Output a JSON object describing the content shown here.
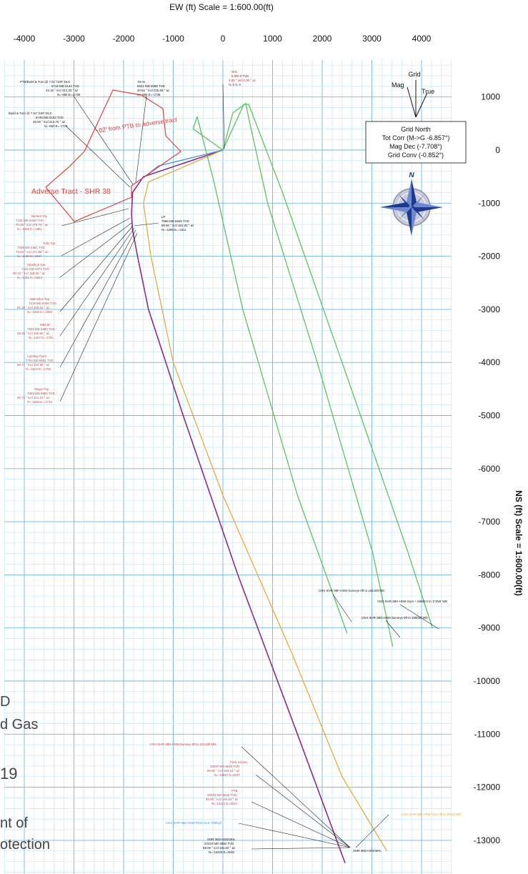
{
  "chart_data": {
    "type": "line",
    "title": "EW (ft) Scale = 1:600.00(ft)",
    "ylabel": "NS (ft) Scale = 1:600.00(ft)",
    "x_ticks": [
      -4000,
      -3000,
      -2000,
      -1000,
      0,
      1000,
      2000,
      3000,
      4000
    ],
    "y_ticks": [
      1000,
      0,
      -1000,
      -2000,
      -3000,
      -4000,
      -5000,
      -6000,
      -7000,
      -8000,
      -9000,
      -10000,
      -11000,
      -12000,
      -13000
    ],
    "xlim": [
      -4400,
      4600
    ],
    "ylim": [
      -14400,
      1700
    ],
    "grid": true,
    "series": [
      {
        "name": "SHR-38D-HSM",
        "color": "#8b2a8b",
        "x": [
          0,
          -1600,
          -1820,
          -1840,
          -1820,
          -1720,
          -1500,
          -800,
          300,
          1500,
          2460
        ],
        "y": [
          0,
          -500,
          -800,
          -1200,
          -1500,
          -2000,
          -3000,
          -5000,
          -8000,
          -11000,
          -13426
        ]
      },
      {
        "name": "SHR-38E",
        "color": "#e8a93a",
        "x": [
          0,
          -1500,
          -1600,
          -1450,
          -1000,
          0,
          1400,
          2400,
          3300
        ],
        "y": [
          0,
          -600,
          -1000,
          -2000,
          -4000,
          -6500,
          -9500,
          -11800,
          -13200
        ]
      },
      {
        "name": "SHR-39F",
        "color": "#5cc45c",
        "x": [
          0,
          -600,
          -520,
          -180,
          400,
          1500,
          2500
        ],
        "y": [
          0,
          400,
          630,
          -600,
          -3000,
          -6500,
          -9100
        ]
      },
      {
        "name": "SHR-38G",
        "color": "#5cc45c",
        "x": [
          0,
          200,
          460,
          520,
          900,
          1900,
          3020,
          3420
        ],
        "y": [
          0,
          700,
          880,
          600,
          -1000,
          -4000,
          -7600,
          -9350
        ]
      },
      {
        "name": "SHR-38H",
        "color": "#5cc45c",
        "x": [
          0,
          420,
          520,
          1200,
          2400,
          3700,
          4220
        ],
        "y": [
          0,
          860,
          860,
          -800,
          -4000,
          -7500,
          -9000
        ]
      },
      {
        "name": "SHR-38 cut",
        "color": "#4a90d9",
        "x": [
          0,
          -1300,
          -1600
        ],
        "y": [
          0,
          -300,
          -520
        ]
      }
    ],
    "annotations": [
      {
        "text": "PTB/Build & Turn @ 7.51°/100' DLS",
        "color": "#000"
      },
      {
        "text": "Tie-In",
        "color": "#000"
      },
      {
        "text": "SHL",
        "color": "#c22"
      },
      {
        "text": "Build & Turn @ 7.51°/100' DLS",
        "color": "#000"
      },
      {
        "text": "~82' from PTB to adverse tract",
        "color": "#e0413a"
      },
      {
        "text": "Adverse Tract - SHR 38",
        "color": "#e0413a"
      },
      {
        "text": "LP",
        "color": "#000"
      },
      {
        "text": "Burkett Top",
        "color": "#e0413a"
      },
      {
        "text": "Tully Top",
        "color": "#e0413a"
      },
      {
        "text": "Hamilton bse",
        "color": "#e0413a"
      },
      {
        "text": "Marcellus Top",
        "color": "#e0413a"
      },
      {
        "text": "MBCM",
        "color": "#e0413a"
      },
      {
        "text": "Landing Point",
        "color": "#e0413a"
      },
      {
        "text": "Target Top",
        "color": "#e0413a"
      },
      {
        "text": "CNX SHR-39F-HSM Surveys 0ft to 16416ft MD",
        "color": "#000"
      },
      {
        "text": "CNX SHR-39H-HSM Gyro + MWD 0 to 17256' MD",
        "color": "#000"
      },
      {
        "text": "CNX SHR-38G-HSM Surveys 0ft to 16903ft MD",
        "color": "#000"
      },
      {
        "text": "CNX SHR-38D-HSM Surveys 0ft to 20133ft MD",
        "color": "#e0413a"
      },
      {
        "text": "Final Survey",
        "color": "#e0413a"
      },
      {
        "text": "PTB",
        "color": "#e0413a"
      },
      {
        "text": "CNX SHR-38D-HSM Rev0 SLS 72Mayfl",
        "color": "#4a90d9"
      },
      {
        "text": "SHR-38D-HSM BHL",
        "color": "#000"
      },
      {
        "text": "SHR-38D-HSM BHL",
        "color": "#000"
      },
      {
        "text": "CNX SHR-38E-HSM Gyro 0ft to 20133 MD",
        "color": "#e8a93a"
      }
    ]
  },
  "north_box": {
    "title": "Grid North",
    "tot_corr": "Tot Corr (M->G -6.857°)",
    "mag_dec": "Mag Dec (-7.708°)",
    "grid_conv": "Grid Conv (-0.852°)"
  },
  "north_arrow": {
    "grid": "Grid",
    "mag": "Mag",
    "true": "True"
  },
  "compass": {
    "label": "N",
    "icon": "compass-rose-icon"
  },
  "margin_text": [
    "D",
    "d Gas",
    "19",
    "nt of",
    "otection"
  ]
}
